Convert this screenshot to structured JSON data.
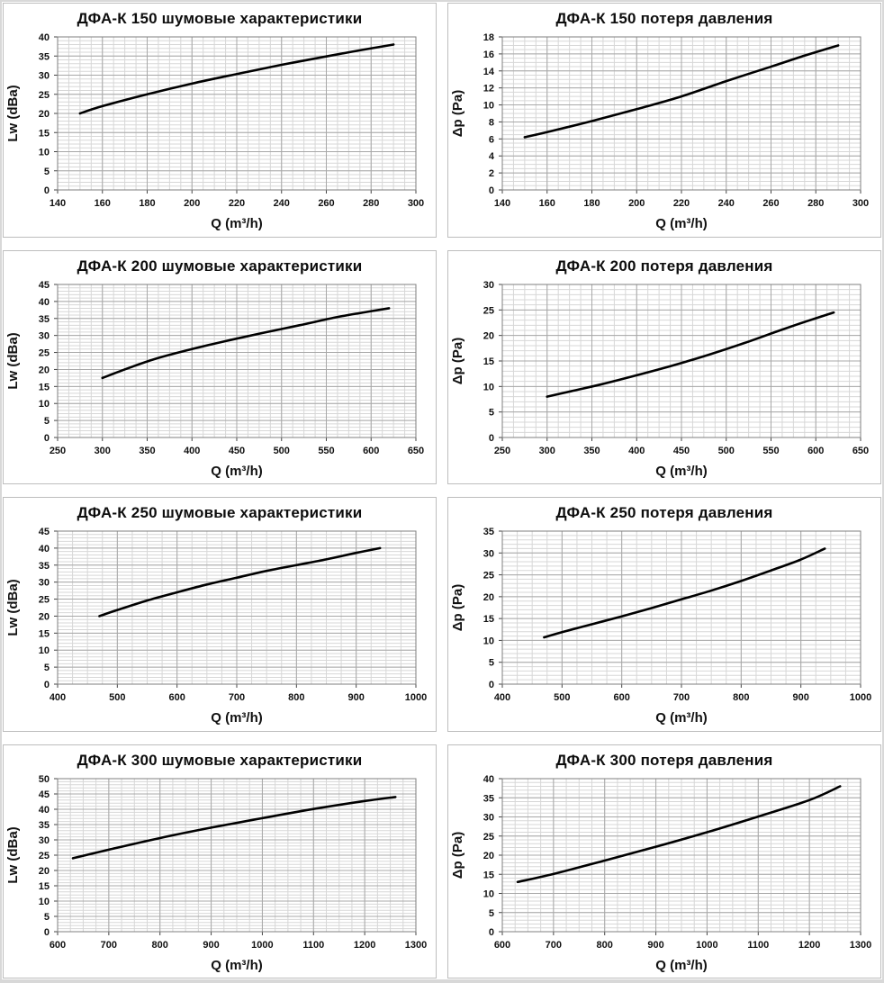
{
  "style": {
    "line_color": "#000000",
    "grid_minor_color": "#d7d7d7",
    "grid_major_color": "#a8a8a8",
    "frame_color": "#7f7f7f",
    "tick_color": "#444444",
    "panel_border_color": "#bdbdbd",
    "background_color": "#ffffff"
  },
  "chart_data": [
    {
      "type": "line",
      "title": "ДФА-К 150 шумовые характеристики",
      "xlabel": "Q (m³/h)",
      "ylabel": "Lw (dBa)",
      "xlim": [
        140,
        300
      ],
      "xtick": 20,
      "xminor": 5,
      "ylim": [
        0,
        40
      ],
      "ytick": 5,
      "yminor": 1,
      "grid": "major+minor",
      "legend": "none",
      "series": [
        {
          "name": "Lw",
          "x": [
            150,
            160,
            180,
            200,
            220,
            240,
            260,
            275,
            290
          ],
          "y": [
            20,
            21.9,
            25,
            27.8,
            30.3,
            32.7,
            34.9,
            36.5,
            38
          ]
        }
      ]
    },
    {
      "type": "line",
      "title": "ДФА-К 150 потеря давления",
      "xlabel": "Q (m³/h)",
      "ylabel": "Δp (Pa)",
      "xlim": [
        140,
        300
      ],
      "xtick": 20,
      "xminor": 5,
      "ylim": [
        0,
        18
      ],
      "ytick": 2,
      "yminor": 0.5,
      "grid": "major+minor",
      "legend": "none",
      "series": [
        {
          "name": "Δp",
          "x": [
            150,
            160,
            180,
            200,
            220,
            240,
            260,
            275,
            290
          ],
          "y": [
            6.2,
            6.8,
            8.1,
            9.5,
            11,
            12.8,
            14.5,
            15.8,
            17
          ]
        }
      ]
    },
    {
      "type": "line",
      "title": "ДФА-К 200 шумовые характеристики",
      "xlabel": "Q (m³/h)",
      "ylabel": "Lw (dBa)",
      "xlim": [
        250,
        650
      ],
      "xtick": 50,
      "xminor": 12.5,
      "ylim": [
        0,
        45
      ],
      "ytick": 5,
      "yminor": 1,
      "grid": "major+minor",
      "legend": "none",
      "series": [
        {
          "name": "Lw",
          "x": [
            300,
            330,
            360,
            400,
            440,
            480,
            520,
            560,
            590,
            620
          ],
          "y": [
            17.5,
            20.5,
            23.2,
            26,
            28.5,
            30.8,
            33,
            35.3,
            36.7,
            38
          ]
        }
      ]
    },
    {
      "type": "line",
      "title": "ДФА-К 200 потеря давления",
      "xlabel": "Q (m³/h)",
      "ylabel": "Δp (Pa)",
      "xlim": [
        250,
        650
      ],
      "xtick": 50,
      "xminor": 12.5,
      "ylim": [
        0,
        30
      ],
      "ytick": 5,
      "yminor": 1,
      "grid": "major+minor",
      "legend": "none",
      "series": [
        {
          "name": "Δp",
          "x": [
            300,
            330,
            360,
            400,
            440,
            480,
            520,
            560,
            590,
            620
          ],
          "y": [
            8,
            9.2,
            10.4,
            12.2,
            14.1,
            16.2,
            18.5,
            21,
            22.8,
            24.5
          ]
        }
      ]
    },
    {
      "type": "line",
      "title": "ДФА-К 250 шумовые характеристики",
      "xlabel": "Q (m³/h)",
      "ylabel": "Lw (dBa)",
      "xlim": [
        400,
        1000
      ],
      "xtick": 100,
      "xminor": 25,
      "ylim": [
        0,
        45
      ],
      "ytick": 5,
      "yminor": 1,
      "grid": "major+minor",
      "legend": "none",
      "series": [
        {
          "name": "Lw",
          "x": [
            470,
            500,
            550,
            600,
            650,
            700,
            750,
            800,
            850,
            900,
            940
          ],
          "y": [
            20,
            21.8,
            24.6,
            27,
            29.3,
            31.3,
            33.3,
            35,
            36.7,
            38.6,
            40
          ]
        }
      ]
    },
    {
      "type": "line",
      "title": "ДФА-К 250 потеря давления",
      "xlabel": "Q (m³/h)",
      "ylabel": "Δp (Pa)",
      "xlim": [
        400,
        1000
      ],
      "xtick": 100,
      "xminor": 25,
      "ylim": [
        0,
        35
      ],
      "ytick": 5,
      "yminor": 1,
      "grid": "major+minor",
      "legend": "none",
      "series": [
        {
          "name": "Δp",
          "x": [
            470,
            500,
            550,
            600,
            650,
            700,
            750,
            800,
            850,
            900,
            940
          ],
          "y": [
            10.7,
            11.9,
            13.7,
            15.5,
            17.4,
            19.4,
            21.4,
            23.6,
            26,
            28.5,
            31
          ]
        }
      ]
    },
    {
      "type": "line",
      "title": "ДФА-К 300 шумовые характеристики",
      "xlabel": "Q (m³/h)",
      "ylabel": "Lw (dBa)",
      "xlim": [
        600,
        1300
      ],
      "xtick": 100,
      "xminor": 25,
      "ylim": [
        0,
        50
      ],
      "ytick": 5,
      "yminor": 1,
      "grid": "major+minor",
      "legend": "none",
      "series": [
        {
          "name": "Lw",
          "x": [
            630,
            700,
            800,
            900,
            1000,
            1100,
            1200,
            1260
          ],
          "y": [
            24,
            26.8,
            30.6,
            34,
            37.1,
            40.1,
            42.7,
            44
          ]
        }
      ]
    },
    {
      "type": "line",
      "title": "ДФА-К 300 потеря давления",
      "xlabel": "Q (m³/h)",
      "ylabel": "Δp (Pa)",
      "xlim": [
        600,
        1300
      ],
      "xtick": 100,
      "xminor": 25,
      "ylim": [
        0,
        40
      ],
      "ytick": 5,
      "yminor": 1,
      "grid": "major+minor",
      "legend": "none",
      "series": [
        {
          "name": "Δp",
          "x": [
            630,
            700,
            800,
            900,
            1000,
            1100,
            1200,
            1260
          ],
          "y": [
            13,
            15.1,
            18.6,
            22.2,
            26,
            30.1,
            34.4,
            38
          ]
        }
      ]
    }
  ]
}
